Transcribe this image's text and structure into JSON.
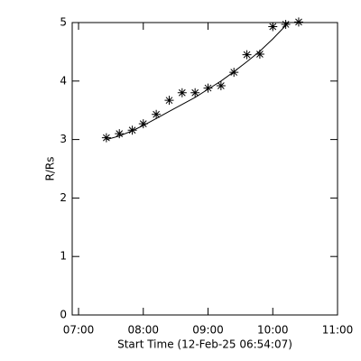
{
  "chart_data": {
    "type": "scatter",
    "y_label": "R/Rs",
    "x_label": "Start Time (12-Feb-25 06:54:07)",
    "x": [
      7.43,
      7.63,
      7.83,
      8.0,
      8.2,
      8.4,
      8.6,
      8.8,
      9.0,
      9.2,
      9.4,
      9.6,
      9.8,
      10.0,
      10.2,
      10.4
    ],
    "series": [
      {
        "color": "#000000",
        "marker": "asterisk",
        "values": [
          3.03,
          3.1,
          3.16,
          3.27,
          3.43,
          3.67,
          3.8,
          3.8,
          3.88,
          3.92,
          4.15,
          4.45,
          4.46,
          4.93,
          4.97,
          5.01
        ]
      },
      {
        "color": "#000000",
        "marker": "line",
        "values": [
          3.0,
          3.06,
          3.15,
          3.24,
          3.36,
          3.48,
          3.6,
          3.72,
          3.86,
          4.0,
          4.16,
          4.33,
          4.51,
          4.72,
          4.95,
          5.18
        ]
      }
    ],
    "xlim": [
      6.902,
      11.0
    ],
    "xticks": [
      {
        "value": 7,
        "label": "07:00"
      },
      {
        "value": 8,
        "label": "08:00"
      },
      {
        "value": 9,
        "label": "09:00"
      },
      {
        "value": 10,
        "label": "10:00"
      },
      {
        "value": 11,
        "label": "11:00"
      }
    ],
    "ylim": [
      0,
      5
    ],
    "yticks": [
      0,
      1,
      2,
      3,
      4,
      5
    ]
  }
}
